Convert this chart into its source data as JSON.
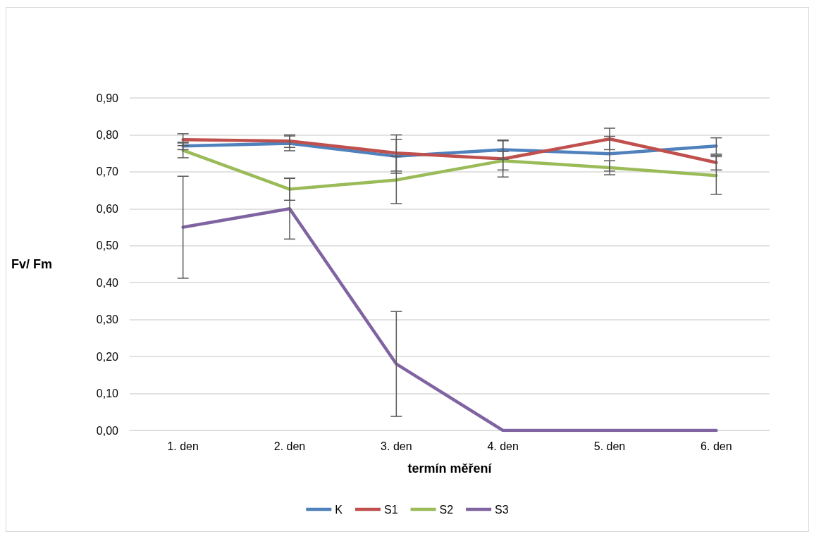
{
  "chart_data": {
    "type": "line",
    "xlabel": "termín měření",
    "ylabel": "Fv/ Fm",
    "categories": [
      "1. den",
      "2. den",
      "3. den",
      "4. den",
      "5. den",
      "6. den"
    ],
    "series": [
      {
        "name": "K",
        "color": "#4f81bd",
        "values": [
          0.77,
          0.777,
          0.742,
          0.76,
          0.749,
          0.77
        ],
        "errors": [
          0.01,
          0.02,
          0.046,
          0.026,
          0.047,
          0.022
        ]
      },
      {
        "name": "S1",
        "color": "#c0504d",
        "values": [
          0.787,
          0.783,
          0.751,
          0.735,
          0.789,
          0.725
        ],
        "errors": [
          0.016,
          0.017,
          0.049,
          0.049,
          0.029,
          0.02
        ]
      },
      {
        "name": "S2",
        "color": "#9bbb59",
        "values": [
          0.758,
          0.653,
          0.678,
          0.73,
          0.711,
          0.69
        ],
        "errors": [
          0.02,
          0.03,
          0.064,
          0.025,
          0.019,
          0.051
        ]
      },
      {
        "name": "S3",
        "color": "#8064a2",
        "values": [
          0.55,
          0.6,
          0.18,
          0,
          0,
          0
        ],
        "errors": [
          0.138,
          0.082,
          0.142,
          null,
          null,
          null
        ]
      }
    ],
    "ylim": [
      0,
      0.9
    ],
    "yticks": [
      {
        "value": 0,
        "label": "0,00"
      },
      {
        "value": 0.1,
        "label": "0,10"
      },
      {
        "value": 0.2,
        "label": "0,20"
      },
      {
        "value": 0.3,
        "label": "0,30"
      },
      {
        "value": 0.4,
        "label": "0,40"
      },
      {
        "value": 0.5,
        "label": "0,50"
      },
      {
        "value": 0.6,
        "label": "0,60"
      },
      {
        "value": 0.7,
        "label": "0,70"
      },
      {
        "value": 0.8,
        "label": "0,80"
      },
      {
        "value": 0.9,
        "label": "0,90"
      }
    ],
    "grid": "y",
    "legend": "bottom",
    "marker": "none",
    "line_style": "solid"
  }
}
